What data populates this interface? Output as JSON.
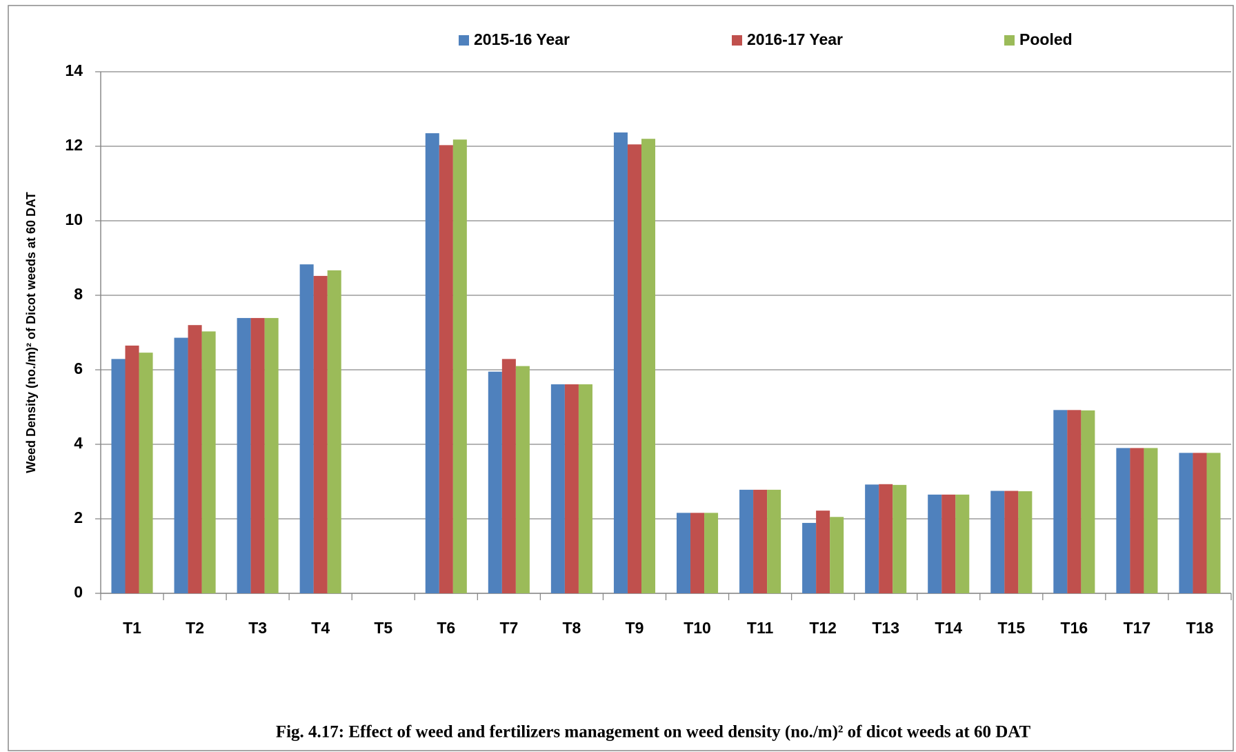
{
  "chart_data": {
    "type": "bar",
    "title": "Fig. 4.17: Effect of weed and fertilizers management on weed density (no./m)²  of dicot weeds at 60 DAT",
    "y_label": "Weed Density (no./m)² of Dicot  weeds  at 60 DAT",
    "categories": [
      "T1",
      "T2",
      "T3",
      "T4",
      "T5",
      "T6",
      "T7",
      "T8",
      "T9",
      "T10",
      "T11",
      "T12",
      "T13",
      "T14",
      "T15",
      "T16",
      "T17",
      "T18"
    ],
    "series": [
      {
        "name": "2015-16 Year",
        "color": "#4f81bd",
        "values": [
          6.29,
          6.86,
          7.39,
          8.83,
          0,
          12.35,
          5.95,
          5.61,
          12.37,
          2.16,
          2.78,
          1.89,
          2.92,
          2.65,
          2.75,
          4.92,
          3.9,
          3.77
        ]
      },
      {
        "name": "2016-17 Year",
        "color": "#c0504d",
        "values": [
          6.65,
          7.2,
          7.39,
          8.52,
          0,
          12.03,
          6.29,
          5.61,
          12.05,
          2.16,
          2.78,
          2.22,
          2.93,
          2.65,
          2.75,
          4.92,
          3.9,
          3.77
        ]
      },
      {
        "name": "Pooled",
        "color": "#9bbb59",
        "values": [
          6.46,
          7.03,
          7.39,
          8.67,
          0,
          12.18,
          6.1,
          5.61,
          12.2,
          2.16,
          2.78,
          2.05,
          2.91,
          2.65,
          2.74,
          4.91,
          3.9,
          3.77
        ]
      }
    ],
    "ylim": [
      0,
      14
    ],
    "yticks": [
      0,
      2,
      4,
      6,
      8,
      10,
      12,
      14
    ],
    "grid": true,
    "legend": "top"
  }
}
